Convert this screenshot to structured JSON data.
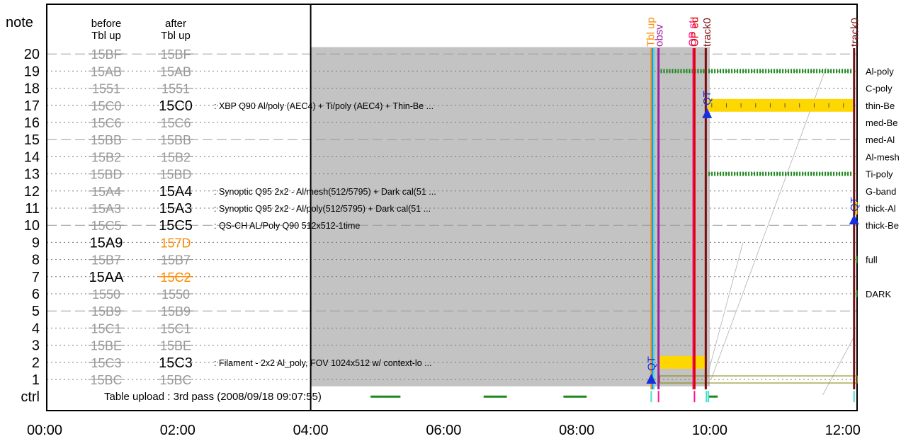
{
  "chart_data": {
    "type": "timeline",
    "title": "",
    "header": {
      "y_label": "note",
      "col_before": [
        "before",
        "Tbl up"
      ],
      "col_after": [
        "after",
        "Tbl up"
      ]
    },
    "x_axis": {
      "unit": "hours",
      "range": [
        0,
        12.2
      ],
      "ticks": [
        {
          "value": 0,
          "label": "00:00"
        },
        {
          "value": 2,
          "label": "02:00"
        },
        {
          "value": 4,
          "label": "04:00"
        },
        {
          "value": 6,
          "label": "06:00"
        },
        {
          "value": 8,
          "label": "08:00"
        },
        {
          "value": 10,
          "label": "10:00"
        },
        {
          "value": 12,
          "label": "12:00"
        }
      ]
    },
    "y_axis": {
      "rows": [
        "ctrl",
        "1",
        "2",
        "3",
        "4",
        "5",
        "6",
        "7",
        "8",
        "9",
        "10",
        "11",
        "12",
        "13",
        "14",
        "15",
        "16",
        "17",
        "18",
        "19",
        "20"
      ]
    },
    "notes": [
      {
        "row": 1,
        "before": "15BC",
        "after": "15BC",
        "before_state": "struck",
        "after_state": "struck",
        "desc": ""
      },
      {
        "row": 2,
        "before": "15C3",
        "after": "15C3",
        "before_state": "struck",
        "after_state": "active",
        "desc": ": Filament - 2x2 Al_poly, FOV 1024x512 w/ context-lo ..."
      },
      {
        "row": 3,
        "before": "15BE",
        "after": "15BE",
        "before_state": "struck",
        "after_state": "struck",
        "desc": ""
      },
      {
        "row": 4,
        "before": "15C1",
        "after": "15C1",
        "before_state": "struck",
        "after_state": "struck",
        "desc": ""
      },
      {
        "row": 5,
        "before": "15B9",
        "after": "15B9",
        "before_state": "struck",
        "after_state": "struck",
        "desc": ""
      },
      {
        "row": 6,
        "before": "1550",
        "after": "1550",
        "before_state": "struck",
        "after_state": "struck",
        "desc": ""
      },
      {
        "row": 7,
        "before": "15AA",
        "after": "15C2",
        "before_state": "active",
        "after_state": "changed",
        "desc": ""
      },
      {
        "row": 8,
        "before": "15B7",
        "after": "15B7",
        "before_state": "struck",
        "after_state": "struck",
        "desc": ""
      },
      {
        "row": 9,
        "before": "15A9",
        "after": "157D",
        "before_state": "active",
        "after_state": "changed_plain",
        "desc": ""
      },
      {
        "row": 10,
        "before": "15C5",
        "after": "15C5",
        "before_state": "struck",
        "after_state": "active",
        "desc": ": QS-CH AL/Poly  Q90 512x512-1time"
      },
      {
        "row": 11,
        "before": "15A3",
        "after": "15A3",
        "before_state": "struck",
        "after_state": "active",
        "desc": ": Synoptic Q95 2x2 - Al/poly(512/5795) + Dark cal(51 ..."
      },
      {
        "row": 12,
        "before": "15A4",
        "after": "15A4",
        "before_state": "struck",
        "after_state": "active",
        "desc": ": Synoptic Q95 2x2 - Al/mesh(512/5795) + Dark cal(51 ..."
      },
      {
        "row": 13,
        "before": "15BD",
        "after": "15BD",
        "before_state": "struck",
        "after_state": "struck",
        "desc": ""
      },
      {
        "row": 14,
        "before": "15B2",
        "after": "15B2",
        "before_state": "struck",
        "after_state": "struck",
        "desc": ""
      },
      {
        "row": 15,
        "before": "15BB",
        "after": "15BB",
        "before_state": "struck",
        "after_state": "struck",
        "desc": ""
      },
      {
        "row": 16,
        "before": "15C6",
        "after": "15C6",
        "before_state": "struck",
        "after_state": "struck",
        "desc": ""
      },
      {
        "row": 17,
        "before": "15C0",
        "after": "15C0",
        "before_state": "struck",
        "after_state": "active",
        "desc": ": XBP Q90 Al/poly (AEC4) + Ti/poly (AEC4) + Thin-Be  ..."
      },
      {
        "row": 18,
        "before": "1551",
        "after": "1551",
        "before_state": "struck",
        "after_state": "struck",
        "desc": ""
      },
      {
        "row": 19,
        "before": "15AB",
        "after": "15AB",
        "before_state": "struck",
        "after_state": "struck",
        "desc": ""
      },
      {
        "row": 20,
        "before": "15BF",
        "after": "15BF",
        "before_state": "struck",
        "after_state": "struck",
        "desc": ""
      }
    ],
    "ctrl_text": "Table upload : 3rd pass (2008/09/18 09:07:55)",
    "filter_labels": [
      {
        "row": 19,
        "label": "Al-poly"
      },
      {
        "row": 18,
        "label": "C-poly"
      },
      {
        "row": 17,
        "label": "thin-Be"
      },
      {
        "row": 16,
        "label": "med-Be"
      },
      {
        "row": 15,
        "label": "med-Al"
      },
      {
        "row": 14,
        "label": "Al-mesh"
      },
      {
        "row": 13,
        "label": "Ti-poly"
      },
      {
        "row": 12,
        "label": "G-band"
      },
      {
        "row": 11,
        "label": "thick-Al"
      },
      {
        "row": 10,
        "label": "thick-Be"
      },
      {
        "row": 8,
        "label": "full"
      },
      {
        "row": 6,
        "label": "DARK"
      }
    ],
    "shaded_region": {
      "start": 4.0,
      "end": 10.0
    },
    "event_lines": [
      {
        "label": "Tbl up",
        "time": 9.12,
        "color": "#ff8c00"
      },
      {
        "label": "",
        "time": 9.14,
        "color": "#1e90ff"
      },
      {
        "label": "",
        "time": 9.16,
        "color": "#40e0d0"
      },
      {
        "label": "obsv",
        "time": 9.23,
        "color": "#a020a0"
      },
      {
        "label": "OP st",
        "time": 9.75,
        "color": "#ff1493"
      },
      {
        "label": "OP ed",
        "time": 9.77,
        "color": "#e00000"
      },
      {
        "label": "track0",
        "time": 9.94,
        "color": "#7b0e0e"
      },
      {
        "label": "track0",
        "time": 12.17,
        "color": "#7b0e0e"
      }
    ],
    "markers": [
      {
        "label": "QT",
        "time": 9.12,
        "row": 1
      },
      {
        "label": "QT",
        "time": 9.96,
        "row": 16.5
      },
      {
        "label": "QT",
        "time": 12.17,
        "row": 10.3
      }
    ],
    "filled_bars": [
      {
        "row": 2,
        "start": 9.25,
        "end": 9.93,
        "color": "#ffd700"
      },
      {
        "row": 17,
        "start": 9.98,
        "end": 12.15,
        "color": "#ffd700"
      },
      {
        "row": 11,
        "start": 12.17,
        "end": 12.22,
        "color": "#ffd700"
      }
    ],
    "dashed_bars": [
      {
        "row": 19,
        "start": 9.26,
        "end": 9.93
      },
      {
        "row": 19,
        "start": 9.98,
        "end": 12.15
      },
      {
        "row": 13,
        "start": 9.98,
        "end": 12.15
      }
    ],
    "ctrl_segments": [
      {
        "start": 4.9,
        "end": 5.35
      },
      {
        "start": 6.6,
        "end": 6.95
      },
      {
        "start": 7.8,
        "end": 8.15
      },
      {
        "start": 9.98,
        "end": 10.12
      }
    ]
  }
}
